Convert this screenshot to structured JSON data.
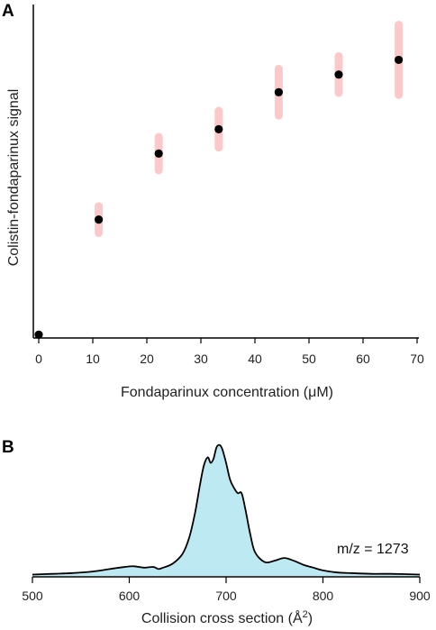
{
  "chart_data": [
    {
      "panel": "A",
      "type": "scatter",
      "xlabel": "Fondaparinux concentration (μM)",
      "ylabel": "Colistin-fondaparinux signal",
      "xlim": [
        0,
        70
      ],
      "ylim": [
        0,
        1
      ],
      "xticks": [
        "0",
        "10",
        "20",
        "30",
        "40",
        "50",
        "60",
        "70"
      ],
      "x": [
        0,
        11.1,
        22.2,
        33.3,
        44.4,
        55.5,
        66.6
      ],
      "y": [
        0.01,
        0.355,
        0.553,
        0.626,
        0.737,
        0.79,
        0.834
      ],
      "err_low": [
        0,
        0.04,
        0.05,
        0.055,
        0.07,
        0.055,
        0.105
      ],
      "err_high": [
        0,
        0.04,
        0.05,
        0.055,
        0.07,
        0.055,
        0.105
      ],
      "marker_color": "#000000",
      "error_color": "#fbc9c9",
      "grid": false
    },
    {
      "panel": "B",
      "type": "area",
      "xlabel": "Collision cross section (Å",
      "xlabel_sup": "2",
      "xlabel_tail": ")",
      "xlim": [
        500,
        900
      ],
      "ylim": [
        0,
        1
      ],
      "xticks": [
        "500",
        "600",
        "700",
        "800",
        "900"
      ],
      "annotation": "m/z = 1273",
      "fill_color": "#bde9f3",
      "line_color": "#000000",
      "x": [
        500,
        520,
        540,
        560,
        580,
        595,
        605,
        615,
        625,
        630,
        635,
        645,
        655,
        662,
        668,
        673,
        677,
        681,
        684,
        687,
        690,
        693,
        696,
        700,
        704,
        708,
        712,
        716,
        720,
        725,
        730,
        740,
        750,
        760,
        770,
        780,
        790,
        800,
        815,
        830,
        850,
        870,
        900
      ],
      "y": [
        0.01,
        0.015,
        0.02,
        0.03,
        0.05,
        0.065,
        0.07,
        0.06,
        0.065,
        0.05,
        0.06,
        0.09,
        0.16,
        0.28,
        0.46,
        0.66,
        0.8,
        0.86,
        0.82,
        0.85,
        0.93,
        0.95,
        0.92,
        0.82,
        0.7,
        0.64,
        0.6,
        0.6,
        0.48,
        0.3,
        0.17,
        0.1,
        0.11,
        0.13,
        0.11,
        0.08,
        0.06,
        0.04,
        0.025,
        0.02,
        0.015,
        0.015,
        0.01
      ],
      "grid": false
    }
  ],
  "panels": {
    "a_label": "A",
    "b_label": "B"
  }
}
